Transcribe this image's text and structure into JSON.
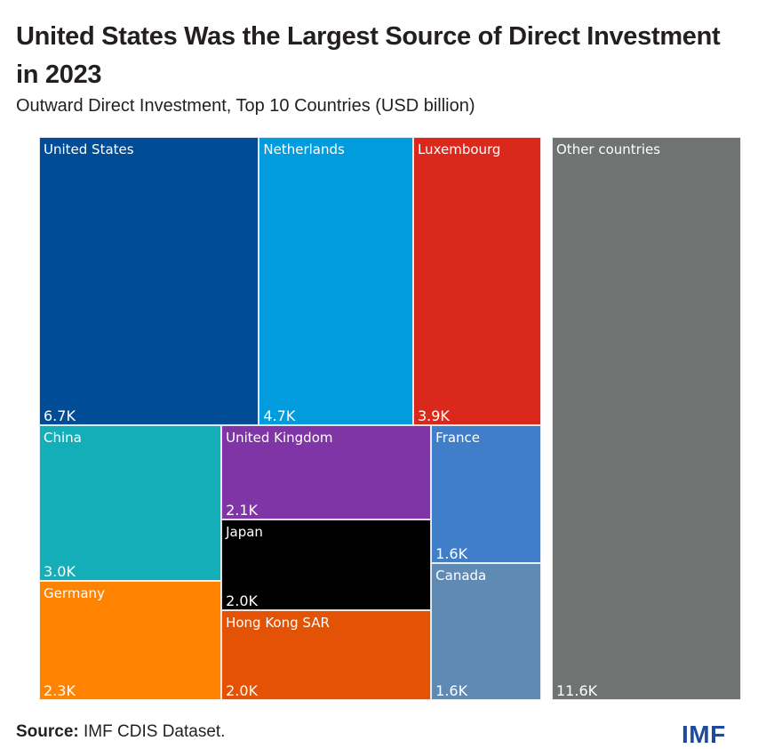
{
  "header": {
    "title": "United States Was the Largest Source of Direct Investment in 2023",
    "subtitle": "Outward Direct Investment, Top 10 Countries (USD billion)"
  },
  "footer": {
    "source_label": "Source:",
    "source_text": " IMF CDIS Dataset.",
    "logo": "IMF"
  },
  "chart_data": {
    "type": "treemap",
    "title": "United States Was the Largest Source of Direct Investment in 2023",
    "subtitle": "Outward Direct Investment, Top 10 Countries (USD billion)",
    "unit": "USD billion",
    "items": [
      {
        "name": "United States",
        "value": 6700,
        "label": "6.7K",
        "color": "#004c97"
      },
      {
        "name": "Netherlands",
        "value": 4700,
        "label": "4.7K",
        "color": "#009cde"
      },
      {
        "name": "Luxembourg",
        "value": 3900,
        "label": "3.9K",
        "color": "#da291c"
      },
      {
        "name": "China",
        "value": 3000,
        "label": "3.0K",
        "color": "#13aeb8"
      },
      {
        "name": "Germany",
        "value": 2300,
        "label": "2.3K",
        "color": "#ff8200"
      },
      {
        "name": "United Kingdom",
        "value": 2100,
        "label": "2.1K",
        "color": "#7f35a5"
      },
      {
        "name": "Japan",
        "value": 2000,
        "label": "2.0K",
        "color": "#000000"
      },
      {
        "name": "Hong Kong SAR",
        "value": 2000,
        "label": "2.0K",
        "color": "#e35205"
      },
      {
        "name": "France",
        "value": 1600,
        "label": "1.6K",
        "color": "#407ec9"
      },
      {
        "name": "Canada",
        "value": 1600,
        "label": "1.6K",
        "color": "#5e8ab4"
      },
      {
        "name": "Other countries",
        "value": 11600,
        "label": "11.6K",
        "color": "#707372"
      }
    ]
  }
}
